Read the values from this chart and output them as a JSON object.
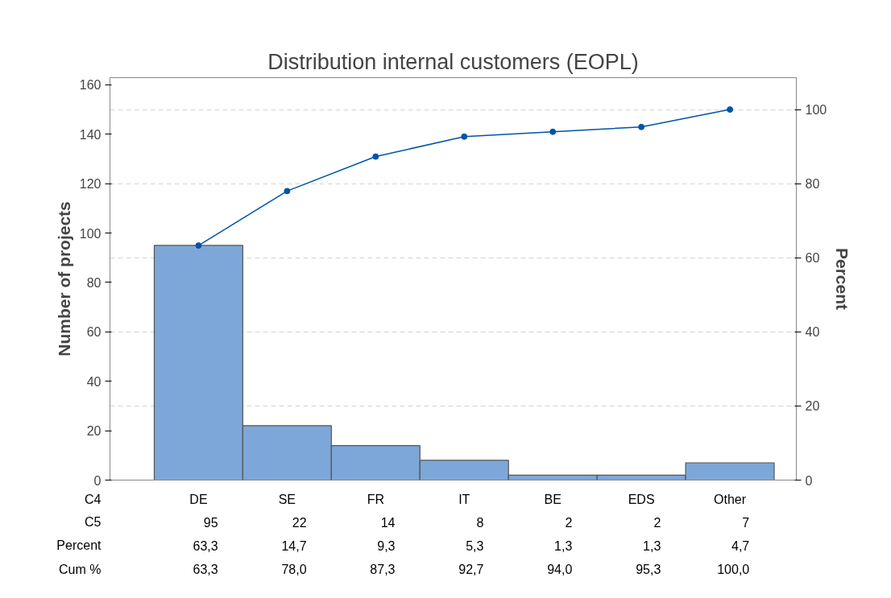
{
  "chart_data": {
    "type": "bar",
    "title": "Distribution internal customers (EOPL)",
    "ylabel": "Number of projects",
    "y2label": "Percent",
    "categories": [
      "DE",
      "SE",
      "FR",
      "IT",
      "BE",
      "EDS",
      "Other"
    ],
    "series": [
      {
        "color": "#7da7d9",
        "values": [
          95,
          22,
          14,
          8,
          2,
          2,
          7
        ],
        "value_labels": [
          "95",
          "22",
          "14",
          "8",
          "2",
          "2",
          "7"
        ]
      },
      {
        "type": "line",
        "axis": "y2",
        "color": "#0054a6",
        "marker": "circle",
        "values": [
          63.3,
          78.0,
          87.3,
          92.7,
          94.0,
          95.3,
          100.0
        ],
        "value_labels": [
          "63,3",
          "78,0",
          "87,3",
          "92,7",
          "94,0",
          "95,3",
          "100,0"
        ]
      }
    ],
    "annotations": [
      "C4",
      "C5",
      "Percent",
      "Cum %",
      "63,3",
      "14,7",
      "9,3",
      "5,3",
      "1,3",
      "1,3",
      "4,7"
    ],
    "ylim": [
      0,
      162.9
    ],
    "yticks": [
      0,
      20,
      40,
      60,
      80,
      100,
      120,
      140,
      160
    ],
    "y2lim": [
      0,
      108.6
    ],
    "y2ticks": [
      0,
      20,
      40,
      60,
      80,
      100
    ],
    "grid": "y2"
  }
}
